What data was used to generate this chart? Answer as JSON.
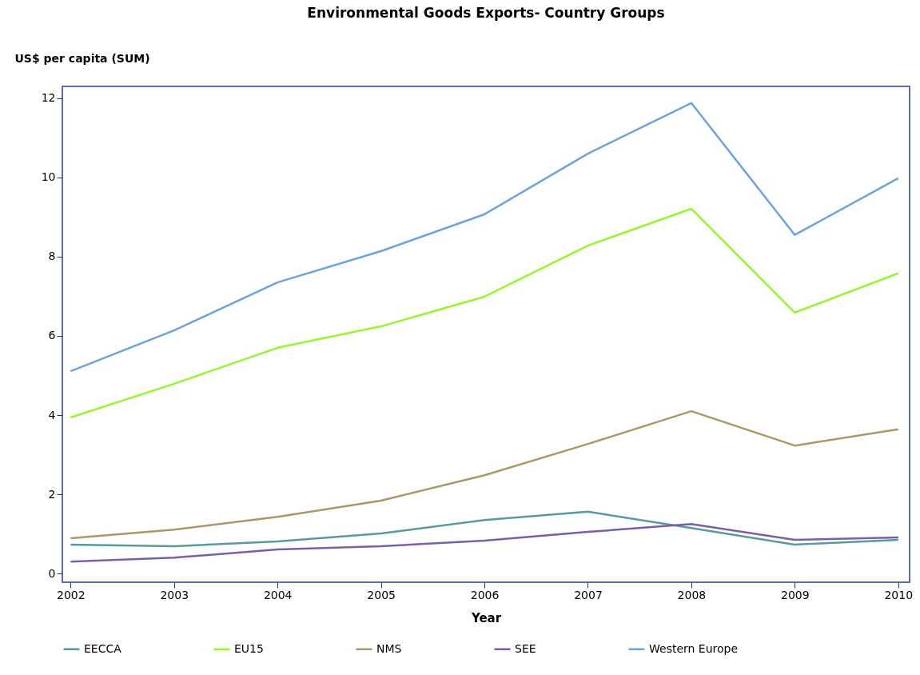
{
  "chart_data": {
    "type": "line",
    "title": "Environmental Goods Exports- Country Groups",
    "xlabel": "Year",
    "ylabel": "US$ per capita (SUM)",
    "x": [
      2002,
      2003,
      2004,
      2005,
      2006,
      2007,
      2008,
      2009,
      2010
    ],
    "xlim": [
      2001.92,
      2010.11
    ],
    "xticks": [
      2002,
      2003,
      2004,
      2005,
      2006,
      2007,
      2008,
      2009,
      2010
    ],
    "ylim": [
      -0.22,
      12.3
    ],
    "yticks": [
      0,
      2,
      4,
      6,
      8,
      10,
      12
    ],
    "grid": false,
    "legend": "bottom",
    "marker": "none",
    "line_style": "solid",
    "series": [
      {
        "name": "EECCA",
        "color": "#5b9a9a",
        "values": [
          0.73,
          0.69,
          0.81,
          1.01,
          1.35,
          1.56,
          1.15,
          0.73,
          0.85
        ]
      },
      {
        "name": "EU15",
        "color": "#99f433",
        "values": [
          3.94,
          4.79,
          5.7,
          6.24,
          6.99,
          8.28,
          9.21,
          6.59,
          7.58
        ]
      },
      {
        "name": "NMS",
        "color": "#a8986a",
        "values": [
          0.89,
          1.11,
          1.43,
          1.84,
          2.48,
          3.27,
          4.1,
          3.23,
          3.64
        ]
      },
      {
        "name": "SEE",
        "color": "#7a5fa8",
        "values": [
          0.3,
          0.4,
          0.61,
          0.69,
          0.83,
          1.05,
          1.25,
          0.85,
          0.91
        ]
      },
      {
        "name": "Western Europe",
        "color": "#6fa3d8",
        "values": [
          5.11,
          6.14,
          7.35,
          8.14,
          9.07,
          10.6,
          11.88,
          8.55,
          9.98
        ]
      }
    ]
  }
}
